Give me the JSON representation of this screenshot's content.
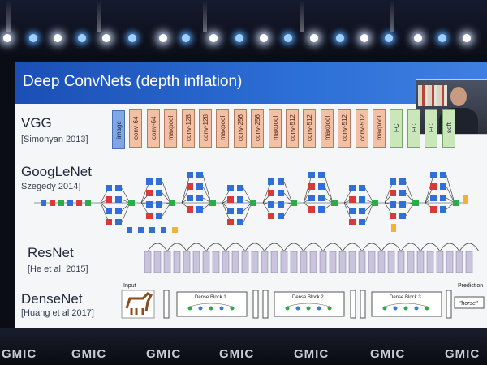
{
  "slide": {
    "title": "Deep ConvNets (depth inflation)",
    "networks": [
      {
        "name": "VGG",
        "citation": "[Simonyan 2013]"
      },
      {
        "name": "GoogLeNet",
        "citation": "Szegedy 2014]"
      },
      {
        "name": "ResNet",
        "citation": "[He et al. 2015]"
      },
      {
        "name": "DenseNet",
        "citation": "[Huang et al 2017]"
      }
    ],
    "vgg_layers": [
      "image",
      "conv-64",
      "conv-64",
      "maxpool",
      "conv-128",
      "conv-128",
      "maxpool",
      "conv-256",
      "conv-256",
      "maxpool",
      "conv-512",
      "conv-512",
      "maxpool",
      "conv-512",
      "conv-512",
      "maxpool",
      "FC",
      "FC",
      "FC",
      "soft"
    ],
    "densenet": {
      "input_label": "Input",
      "prediction_label": "Prediction",
      "prediction_value": "\"horse\"",
      "blocks": [
        "Dense Block 1",
        "Dense Block 2",
        "Dense Block 3"
      ]
    }
  },
  "venue": {
    "brand": "GMIC"
  },
  "colors": {
    "title_bar": "#2c6fd6",
    "conv": "#f2c0a5",
    "image": "#7fa7e6",
    "fc": "#c9e7b9"
  }
}
